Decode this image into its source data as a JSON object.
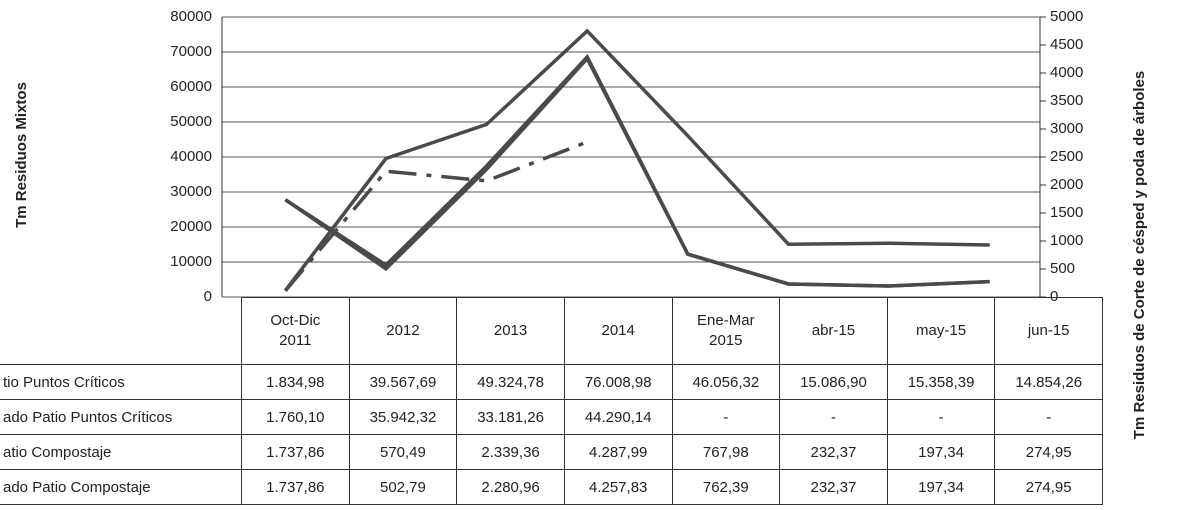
{
  "chart_data": {
    "type": "line",
    "y_label": "Tm Residuos Mixtos",
    "y2_label": "Tm Residuos de Corte de césped y poda de árboles",
    "categories": [
      "Oct-Dic 2011",
      "2012",
      "2013",
      "2014",
      "Ene-Mar 2015",
      "abr-15",
      "may-15",
      "jun-15"
    ],
    "series": [
      {
        "name": "tio Puntos Críticos",
        "color": "#4a4a4a",
        "line_style": "solid",
        "values": [
          1834.98,
          39567.69,
          49324.78,
          76008.98,
          46056.32,
          15086.9,
          15358.39,
          14854.26
        ],
        "value_labels": [
          "1.834,98",
          "39.567,69",
          "49.324,78",
          "76.008,98",
          "46.056,32",
          "15.086,90",
          "15.358,39",
          "14.854,26"
        ]
      },
      {
        "name": "ado Patio Puntos Críticos",
        "color": "#4a4a4a",
        "line_style": "dashdot",
        "values": [
          1760.1,
          35942.32,
          33181.26,
          44290.14,
          null,
          null,
          null,
          null
        ],
        "value_labels": [
          "1.760,10",
          "35.942,32",
          "33.181,26",
          "44.290,14",
          "-",
          "-",
          "-",
          "-"
        ]
      },
      {
        "name": "atio Compostaje",
        "color": "#4a4a4a",
        "line_style": "solid",
        "axis": "y2",
        "values": [
          1737.86,
          570.49,
          2339.36,
          4287.99,
          767.98,
          232.37,
          197.34,
          274.95
        ],
        "value_labels": [
          "1.737,86",
          "570,49",
          "2.339,36",
          "4.287,99",
          "767,98",
          "232,37",
          "197,34",
          "274,95"
        ]
      },
      {
        "name": "ado Patio Compostaje",
        "color": "#4a4a4a",
        "line_style": "solid",
        "axis": "y2",
        "values": [
          1737.86,
          502.79,
          2280.96,
          4257.83,
          762.39,
          232.37,
          197.34,
          274.95
        ],
        "value_labels": [
          "1.737,86",
          "502,79",
          "2.280,96",
          "4.257,83",
          "762,39",
          "232,37",
          "197,34",
          "274,95"
        ]
      }
    ],
    "ylim": [
      0,
      80000
    ],
    "yticks": [
      0,
      10000,
      20000,
      30000,
      40000,
      50000,
      60000,
      70000,
      80000
    ],
    "y2lim": [
      0,
      5000
    ],
    "y2ticks": [
      0,
      500,
      1000,
      1500,
      2000,
      2500,
      3000,
      3500,
      4000,
      4500,
      5000
    ],
    "grid": true
  }
}
